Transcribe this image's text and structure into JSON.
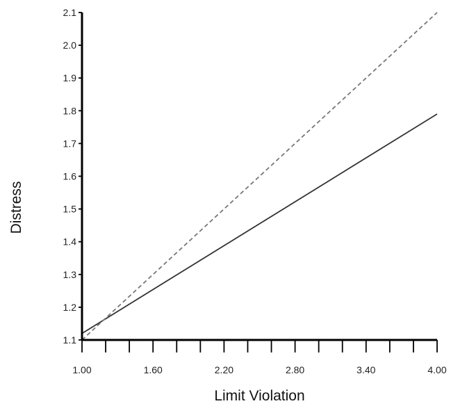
{
  "chart_data": {
    "type": "line",
    "title": "",
    "xlabel": "Limit Violation",
    "ylabel": "Distress",
    "xlim": [
      1.0,
      4.0
    ],
    "ylim": [
      1.1,
      2.1
    ],
    "x_tick_labels": [
      "1.00",
      "1.60",
      "2.20",
      "2.80",
      "3.40",
      "4.00"
    ],
    "x_tick_values": [
      1.0,
      1.6,
      2.2,
      2.8,
      3.4,
      4.0
    ],
    "x_minor_step": 0.2,
    "y_tick_labels": [
      "1.1",
      "1.2",
      "1.3",
      "1.4",
      "1.5",
      "1.6",
      "1.7",
      "1.8",
      "1.9",
      "2.0",
      "2.1"
    ],
    "y_tick_values": [
      1.1,
      1.2,
      1.3,
      1.4,
      1.5,
      1.6,
      1.7,
      1.8,
      1.9,
      2.0,
      2.1
    ],
    "grid": false,
    "legend": "none",
    "series": [
      {
        "style": "solid",
        "color": "#333333",
        "x": [
          1.0,
          4.0
        ],
        "y": [
          1.12,
          1.79
        ]
      },
      {
        "style": "dashed",
        "color": "#777777",
        "x": [
          1.0,
          4.0
        ],
        "y": [
          1.1,
          2.1
        ]
      }
    ]
  }
}
